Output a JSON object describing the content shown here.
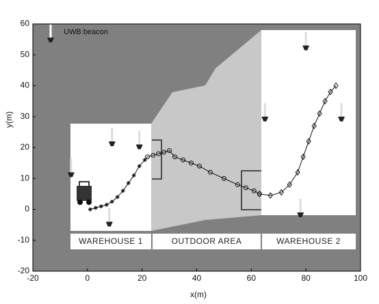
{
  "chart_data": {
    "type": "scatter",
    "xlabel": "x(m)",
    "ylabel": "y(m)",
    "xlim": [
      -20,
      100
    ],
    "ylim": [
      -20,
      60
    ],
    "xticks": [
      -20,
      0,
      20,
      40,
      60,
      80,
      100
    ],
    "yticks": [
      -20,
      -10,
      0,
      10,
      20,
      30,
      40,
      50,
      60
    ],
    "regions": [
      "WAREHOUSE 1",
      "OUTDOOR AREA",
      "WAREHOUSE 2"
    ],
    "beacons": {
      "name": "UWB beacon",
      "color": "#222222",
      "x": [
        9,
        19,
        -6,
        8,
        80,
        65,
        93,
        78
      ],
      "values": [
        22,
        21,
        12,
        -4,
        53,
        30,
        30,
        -1
      ]
    },
    "series": [
      {
        "marker": "star",
        "color": "#111111",
        "x": [
          1,
          3,
          5,
          7,
          9,
          11,
          13,
          15,
          17,
          19,
          21
        ],
        "values": [
          0,
          0.5,
          1,
          1.5,
          2.5,
          4,
          6,
          8.5,
          11,
          14,
          16
        ]
      },
      {
        "marker": "circle",
        "color": "#111111",
        "x": [
          22,
          24,
          26,
          28,
          30,
          32,
          35,
          38,
          41,
          45,
          50,
          55,
          58,
          61,
          63
        ],
        "values": [
          17,
          17.5,
          18,
          18.5,
          19,
          17,
          16,
          15,
          14,
          12,
          10,
          8,
          7,
          6,
          5
        ]
      },
      {
        "marker": "diamond",
        "color": "#111111",
        "x": [
          63,
          67,
          71,
          74,
          77,
          79,
          81,
          83,
          85,
          87,
          89,
          91
        ],
        "values": [
          5,
          4.5,
          5.5,
          8,
          12,
          17,
          22,
          27,
          31,
          35,
          38,
          40
        ]
      }
    ]
  }
}
